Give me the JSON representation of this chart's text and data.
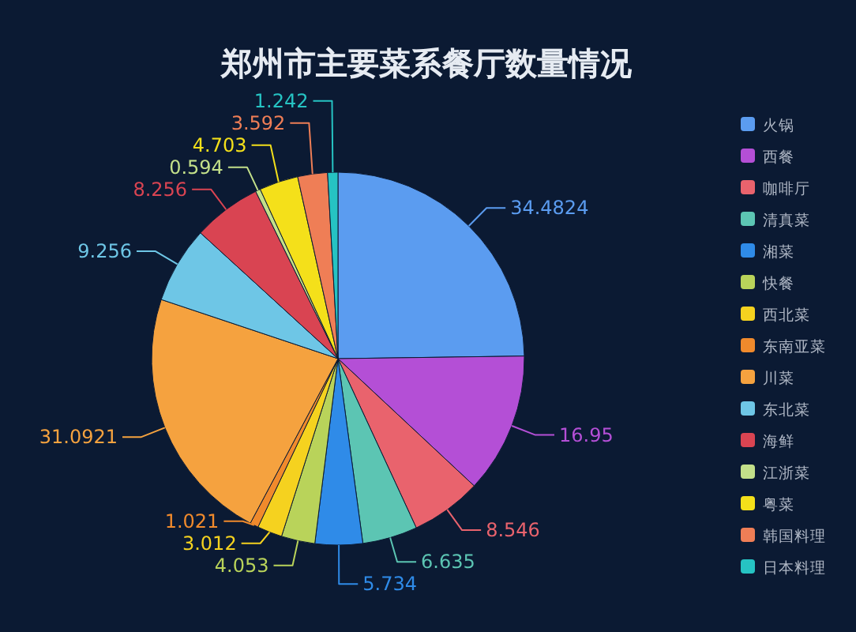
{
  "chart_data": {
    "type": "pie",
    "title": "郑州市主要菜系餐厅数量情况",
    "categories": [
      "火锅",
      "西餐",
      "咖啡厅",
      "清真菜",
      "湘菜",
      "快餐",
      "西北菜",
      "东南亚菜",
      "川菜",
      "东北菜",
      "海鲜",
      "江浙菜",
      "粤菜",
      "韩国料理",
      "日本料理"
    ],
    "values": [
      34.4824,
      16.95,
      8.546,
      6.635,
      5.734,
      4.053,
      3.012,
      1.021,
      31.0921,
      9.256,
      8.256,
      0.594,
      4.703,
      3.592,
      1.242
    ],
    "colors": [
      "#5b9cf0",
      "#b44fd6",
      "#e9636d",
      "#5cc5b3",
      "#2f8be8",
      "#b9d35a",
      "#f5d21f",
      "#f08a2c",
      "#f5a23f",
      "#6ec6e6",
      "#d94452",
      "#c3e08a",
      "#f4e01a",
      "#ef7e56",
      "#26c3c3"
    ],
    "legend": "right",
    "data_labels": true
  }
}
